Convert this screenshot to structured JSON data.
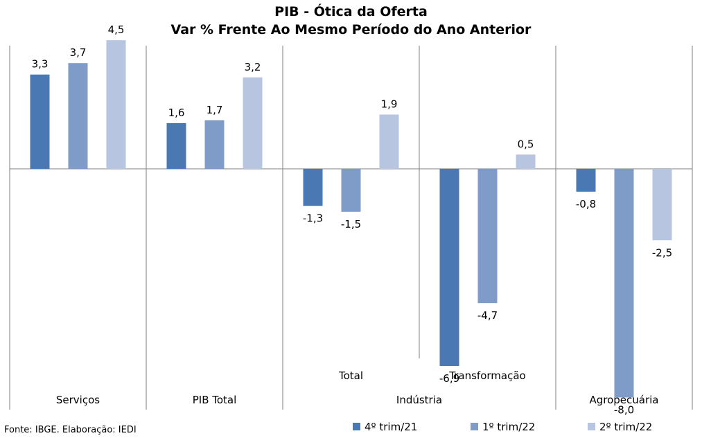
{
  "chart_data": {
    "type": "bar",
    "title": "PIB - Ótica da Oferta",
    "subtitle": "Var % Frente Ao Mesmo Período do Ano Anterior",
    "categories": [
      "Serviços",
      "PIB Total",
      "Total",
      "Transformação",
      "Agropecuária"
    ],
    "groups": [
      {
        "label": "Serviços",
        "subcategories": [
          "Serviços"
        ]
      },
      {
        "label": "PIB Total",
        "subcategories": [
          "PIB Total"
        ]
      },
      {
        "label": "Indústria",
        "subcategories": [
          "Total",
          "Transformação"
        ]
      },
      {
        "label": "Agropecuária",
        "subcategories": [
          "Agropecuária"
        ]
      }
    ],
    "subcategory_labels": [
      "",
      "",
      "Total",
      "Transformação",
      ""
    ],
    "series": [
      {
        "name": "4º trim/21",
        "color": "#4a78b3",
        "values": [
          3.3,
          1.6,
          -1.3,
          -6.9,
          -0.8
        ]
      },
      {
        "name": "1º trim/22",
        "color": "#7f9cc9",
        "values": [
          3.7,
          1.7,
          -1.5,
          -4.7,
          -8.0
        ]
      },
      {
        "name": "2º trim/22",
        "color": "#b7c5e0",
        "values": [
          4.5,
          3.2,
          1.9,
          0.5,
          -2.5
        ]
      }
    ],
    "data_labels": [
      [
        "3,3",
        "1,6",
        "-1,3",
        "-6,9",
        "-0,8"
      ],
      [
        "3,7",
        "1,7",
        "-1,5",
        "-4,7",
        "-8,0"
      ],
      [
        "4,5",
        "3,2",
        "1,9",
        "0,5",
        "-2,5"
      ]
    ],
    "grid": false,
    "legend_position": "bottom-right"
  },
  "source": "Fonte: IBGE. Elaboração: IEDI"
}
